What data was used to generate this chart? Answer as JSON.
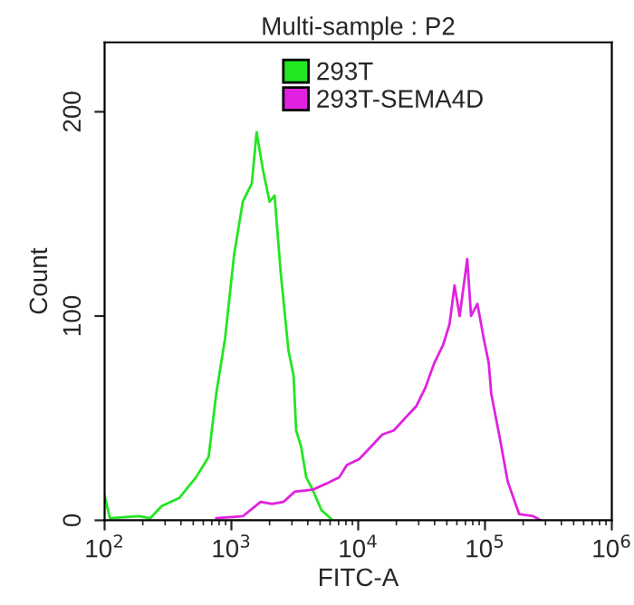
{
  "chart_data": {
    "type": "line",
    "title": "Multi-sample : P2",
    "xlabel": "FITC-A",
    "ylabel": "Count",
    "log": "x",
    "xlim": [
      100,
      1000000
    ],
    "ylim": [
      0,
      234
    ],
    "xticks": [
      {
        "value": 100,
        "label": "10$^{2}$"
      },
      {
        "value": 1000,
        "label": "10$^{3}$"
      },
      {
        "value": 10000,
        "label": "10$^{4}$"
      },
      {
        "value": 100000,
        "label": "10$^{5}$"
      },
      {
        "value": 1000000,
        "label": "10$^{6}$"
      }
    ],
    "yticks": [
      0,
      100,
      200
    ],
    "grid": false,
    "legend": "top",
    "marker": "none",
    "line_style": "solid",
    "series": [
      {
        "name": "293T",
        "color": "#22e622",
        "x": [
          100,
          110,
          186,
          229,
          282,
          389,
          525,
          661,
          759,
          891,
          1050,
          1230,
          1450,
          1580,
          1780,
          2000,
          2190,
          2450,
          2820,
          3090,
          3240,
          3550,
          3890,
          4370,
          5130,
          6310
        ],
        "values": [
          12,
          1,
          2,
          1,
          7,
          11,
          21,
          31,
          62,
          89,
          130,
          156,
          165,
          190,
          171,
          156,
          159,
          121,
          83,
          71,
          44,
          36,
          21,
          15,
          5,
          0
        ]
      },
      {
        "name": "293T-SEMA4D",
        "color": "#e022e0",
        "x": [
          759,
          1230,
          1700,
          2090,
          2570,
          3160,
          4370,
          5620,
          7080,
          8130,
          10200,
          12600,
          15500,
          19100,
          23400,
          28800,
          33900,
          39800,
          46800,
          52500,
          57500,
          63100,
          72400,
          77600,
          87100,
          97700,
          107000,
          112000,
          132000,
          151000,
          186000,
          240000,
          275000
        ],
        "values": [
          1,
          2,
          9,
          8,
          9,
          14,
          15,
          18,
          21,
          27,
          30,
          36,
          42,
          44,
          50,
          56,
          65,
          77,
          86,
          96,
          115,
          100,
          128,
          100,
          106,
          89,
          77,
          62,
          39,
          19,
          3,
          2,
          0
        ]
      }
    ]
  }
}
